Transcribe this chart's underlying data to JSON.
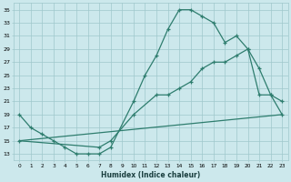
{
  "line1_x": [
    0,
    1,
    2,
    3,
    4,
    5,
    6,
    7,
    8,
    10,
    11,
    12,
    13,
    14,
    15,
    16,
    17,
    18,
    19,
    20,
    21,
    22,
    23
  ],
  "line1_y": [
    19,
    17,
    16,
    15,
    14,
    13,
    13,
    13,
    14,
    21,
    25,
    28,
    32,
    35,
    35,
    34,
    33,
    30,
    31,
    29,
    26,
    22,
    19
  ],
  "line2_x": [
    0,
    23
  ],
  "line2_y": [
    15,
    19
  ],
  "line3_x": [
    0,
    7,
    8,
    10,
    12,
    13,
    14,
    15,
    16,
    17,
    18,
    19,
    20,
    21,
    22,
    23
  ],
  "line3_y": [
    15,
    14,
    15,
    19,
    22,
    22,
    23,
    24,
    26,
    27,
    27,
    28,
    29,
    22,
    22,
    21
  ],
  "color": "#2e7d6e",
  "bg_color": "#cce8ec",
  "grid_color": "#9fc8cc",
  "xlabel": "Humidex (Indice chaleur)",
  "xlim": [
    -0.5,
    23.5
  ],
  "ylim": [
    12,
    36
  ],
  "yticks": [
    13,
    15,
    17,
    19,
    21,
    23,
    25,
    27,
    29,
    31,
    33,
    35
  ],
  "xticks": [
    0,
    1,
    2,
    3,
    4,
    5,
    6,
    7,
    8,
    9,
    10,
    11,
    12,
    13,
    14,
    15,
    16,
    17,
    18,
    19,
    20,
    21,
    22,
    23
  ]
}
